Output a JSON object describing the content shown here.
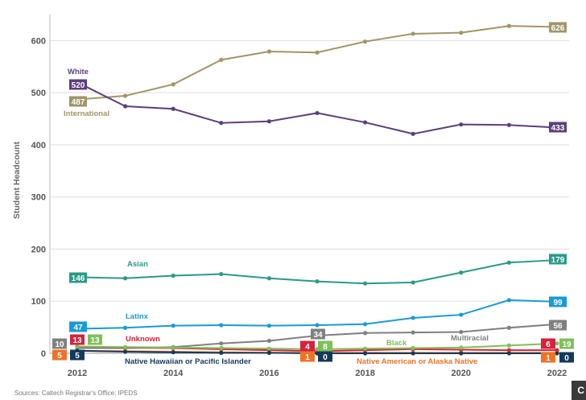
{
  "chart_data": {
    "type": "line",
    "title": "",
    "ylabel": "Student Headcount",
    "xlabel": "",
    "ylim": [
      0,
      650
    ],
    "xlim": [
      2012,
      2022
    ],
    "x": [
      2012,
      2013,
      2014,
      2015,
      2016,
      2017,
      2018,
      2019,
      2020,
      2021,
      2022
    ],
    "x_ticks": [
      "2012",
      "2014",
      "2016",
      "2018",
      "2020",
      "2022"
    ],
    "y_ticks": [
      "0",
      "100",
      "200",
      "300",
      "400",
      "500",
      "600"
    ],
    "grid": "horizontal",
    "legend": "inline labels",
    "series": [
      {
        "name": "International",
        "color": "#a09567",
        "values": [
          487,
          494,
          516,
          563,
          579,
          577,
          598,
          613,
          615,
          628,
          626
        ],
        "start_label": "487",
        "end_label": "626"
      },
      {
        "name": "White",
        "color": "#5b3f7b",
        "values": [
          520,
          474,
          469,
          442,
          445,
          461,
          443,
          421,
          439,
          438,
          433
        ],
        "start_label": "520",
        "end_label": "433"
      },
      {
        "name": "Asian",
        "color": "#2a9a86",
        "values": [
          146,
          144,
          149,
          152,
          144,
          138,
          134,
          136,
          155,
          174,
          179
        ],
        "start_label": "146",
        "end_label": "179"
      },
      {
        "name": "Latinx",
        "color": "#1a9ad6",
        "values": [
          47,
          49,
          53,
          54,
          53,
          54,
          56,
          68,
          74,
          102,
          99
        ],
        "start_label": "47",
        "end_label": "99"
      },
      {
        "name": "Multiracial",
        "color": "#808080",
        "values": [
          10,
          10,
          12,
          19,
          24,
          34,
          39,
          40,
          41,
          49,
          56
        ],
        "start_label": "10",
        "end_label": "56",
        "mid_label": "34",
        "mid_index": 5
      },
      {
        "name": "Unknown",
        "color": "#d4233b",
        "values": [
          13,
          11,
          10,
          8,
          6,
          4,
          6,
          8,
          7,
          6,
          6
        ],
        "start_label": "13",
        "end_label": "6",
        "mid_label": "4",
        "mid_index": 5
      },
      {
        "name": "Black",
        "color": "#7fbf5a",
        "values": [
          13,
          12,
          11,
          10,
          9,
          8,
          9,
          10,
          11,
          15,
          19
        ],
        "start_label": "13",
        "end_label": "19",
        "mid_label": "8",
        "mid_index": 5
      },
      {
        "name": "Native American or Alaska Native",
        "color": "#ee7324",
        "values": [
          5,
          4,
          3,
          2,
          1,
          1,
          1,
          1,
          1,
          1,
          1
        ],
        "start_label": "5",
        "end_label": "1",
        "mid_label": "1",
        "mid_index": 5
      },
      {
        "name": "Native Hawaiian or Pacific Islander",
        "color": "#143a5a",
        "values": [
          5,
          3,
          2,
          1,
          1,
          0,
          0,
          0,
          0,
          0,
          0
        ],
        "start_label": "5",
        "end_label": "0",
        "mid_label": "0",
        "mid_index": 5
      }
    ],
    "source_note": "Sources: Caltech Registrar's Office; IPEDS"
  },
  "corner_icon_label": "C"
}
